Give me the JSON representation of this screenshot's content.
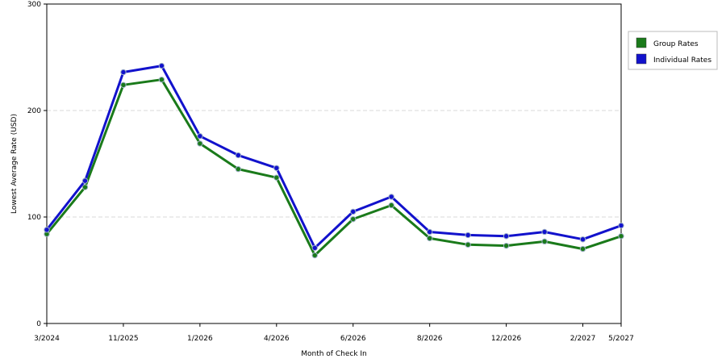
{
  "chart_data": {
    "type": "line",
    "title": "",
    "xlabel": "Month of Check In",
    "ylabel": "Lowest Average Rate (USD)",
    "ylim": [
      0,
      300
    ],
    "y_ticks": [
      "0",
      "100",
      "200",
      "300"
    ],
    "x_tick_labels": [
      "3/2024",
      "11/2025",
      "1/2026",
      "4/2026",
      "6/2026",
      "8/2026",
      "12/2026",
      "2/2027",
      "5/2027"
    ],
    "x_tick_positions": [
      0,
      2,
      4,
      6,
      8,
      10,
      12,
      14,
      15
    ],
    "x_count": 16,
    "grid": true,
    "legend_position": "top-right",
    "series": [
      {
        "name": "Group Rates",
        "color": "#1a7a1a",
        "values": [
          84,
          128,
          224,
          229,
          169,
          145,
          137,
          64,
          98,
          111,
          80,
          74,
          73,
          77,
          70,
          82
        ]
      },
      {
        "name": "Individual Rates",
        "color": "#1212cc",
        "values": [
          88,
          134,
          236,
          242,
          176,
          158,
          146,
          71,
          105,
          119,
          86,
          83,
          82,
          86,
          79,
          92
        ]
      }
    ]
  }
}
